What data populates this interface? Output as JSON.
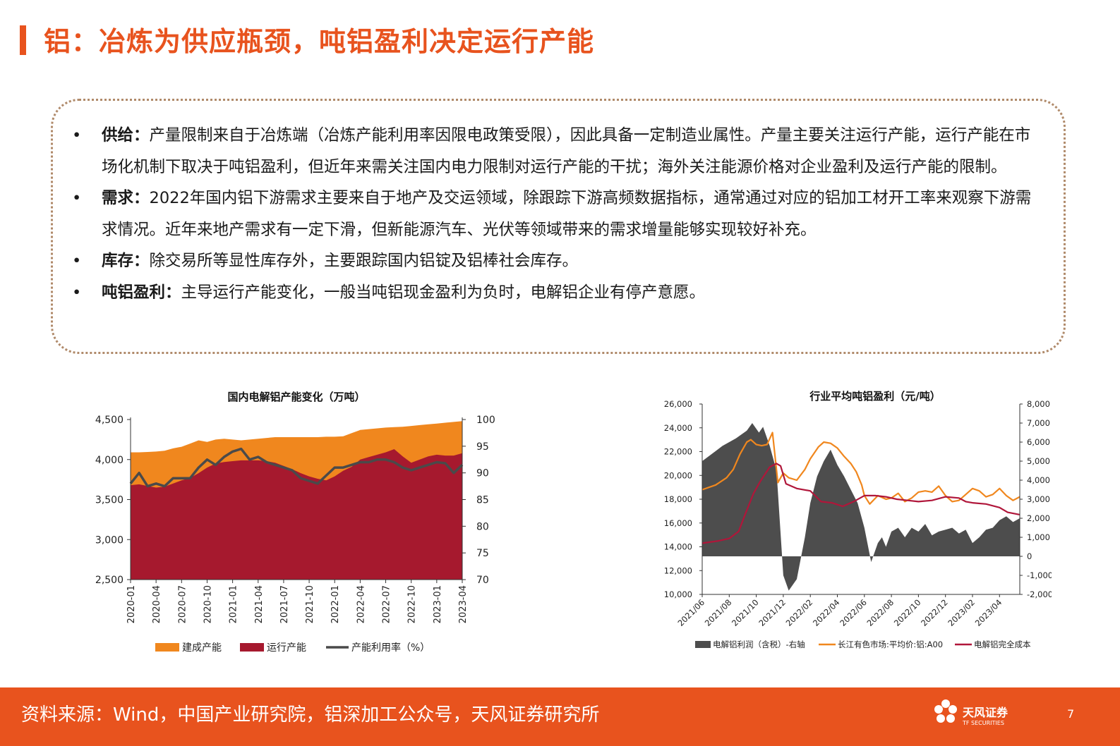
{
  "header": {
    "title": "铝：冶炼为供应瓶颈，吨铝盈利决定运行产能"
  },
  "bullets": [
    {
      "label": "供给：",
      "text": "产量限制来自于冶炼端（冶炼产能利用率因限电政策受限），因此具备一定制造业属性。产量主要关注运行产能，运行产能在市场化机制下取决于吨铝盈利，但近年来需关注国内电力限制对运行产能的干扰；海外关注能源价格对企业盈利及运行产能的限制。"
    },
    {
      "label": "需求：",
      "text": "2022年国内铝下游需求主要来自于地产及交运领域，除跟踪下游高频数据指标，通常通过对应的铝加工材开工率来观察下游需求情况。近年来地产需求有一定下滑，但新能源汽车、光伏等领域带来的需求增量能够实现较好补充。"
    },
    {
      "label": "库存：",
      "text": "除交易所等显性库存外，主要跟踪国内铝锭及铝棒社会库存。"
    },
    {
      "label": "吨铝盈利：",
      "text": "主导运行产能变化，一般当吨铝现金盈利为负时，电解铝企业有停产意愿。"
    }
  ],
  "chart_data": [
    {
      "type": "area",
      "title": "国内电解铝产能变化（万吨）",
      "categories": [
        "2020-01",
        "2020-02",
        "2020-03",
        "2020-04",
        "2020-05",
        "2020-06",
        "2020-07",
        "2020-08",
        "2020-09",
        "2020-10",
        "2020-11",
        "2020-12",
        "2021-01",
        "2021-02",
        "2021-03",
        "2021-04",
        "2021-05",
        "2021-06",
        "2021-07",
        "2021-08",
        "2021-09",
        "2021-10",
        "2021-11",
        "2021-12",
        "2022-01",
        "2022-02",
        "2022-03",
        "2022-04",
        "2022-05",
        "2022-06",
        "2022-07",
        "2022-08",
        "2022-09",
        "2022-10",
        "2022-11",
        "2022-12",
        "2023-01",
        "2023-02",
        "2023-03",
        "2023-04"
      ],
      "tick_labels": [
        "2020-01",
        "2020-04",
        "2020-07",
        "2020-10",
        "2021-01",
        "2021-04",
        "2021-07",
        "2021-10",
        "2022-01",
        "2022-04",
        "2022-07",
        "2022-10",
        "2023-01",
        "2023-04"
      ],
      "left_axis": {
        "ylim": [
          2500,
          4500
        ],
        "ticks": [
          "2,500",
          "3,000",
          "3,500",
          "4,000",
          "4,500"
        ]
      },
      "right_axis": {
        "ylim": [
          70,
          100
        ],
        "ticks": [
          "70",
          "75",
          "80",
          "85",
          "90",
          "95",
          "100"
        ]
      },
      "series": [
        {
          "name": "建成产能",
          "axis": "left",
          "color": "#F0871E",
          "values": [
            4090,
            4090,
            4095,
            4100,
            4110,
            4140,
            4160,
            4200,
            4240,
            4220,
            4250,
            4260,
            4250,
            4240,
            4250,
            4260,
            4270,
            4280,
            4280,
            4280,
            4280,
            4280,
            4280,
            4285,
            4285,
            4290,
            4330,
            4370,
            4380,
            4390,
            4400,
            4405,
            4410,
            4420,
            4430,
            4440,
            4450,
            4460,
            4470,
            4480
          ]
        },
        {
          "name": "运行产能",
          "axis": "left",
          "color": "#A6192E",
          "values": [
            3680,
            3690,
            3670,
            3650,
            3660,
            3700,
            3740,
            3770,
            3830,
            3900,
            3950,
            3970,
            3980,
            3990,
            3990,
            3990,
            3980,
            3960,
            3920,
            3880,
            3830,
            3790,
            3760,
            3740,
            3790,
            3860,
            3910,
            4000,
            4030,
            4060,
            4090,
            4130,
            4040,
            3960,
            4000,
            4040,
            4060,
            4050,
            4050,
            4080
          ]
        },
        {
          "name": "产能利用率（%）",
          "axis": "right",
          "color": "#4A4A4A",
          "values": [
            88.0,
            90.0,
            87.5,
            88.0,
            87.5,
            89.0,
            89.0,
            89.0,
            91.0,
            92.5,
            91.5,
            93.0,
            94.0,
            94.5,
            92.5,
            93.0,
            92.0,
            91.5,
            91.0,
            90.5,
            89.0,
            88.5,
            88.0,
            89.5,
            91.0,
            91.0,
            91.5,
            92.0,
            92.0,
            92.5,
            92.5,
            92.0,
            91.0,
            90.5,
            91.0,
            91.5,
            92.0,
            91.8,
            90.0,
            91.5
          ]
        }
      ],
      "legend_position": "bottom"
    },
    {
      "type": "line",
      "title": "行业平均吨铝盈利（元/吨）",
      "tick_labels": [
        "2021/06",
        "2021/08",
        "2021/10",
        "2021/12",
        "2022/02",
        "2022/04",
        "2022/06",
        "2022/08",
        "2022/10",
        "2022/12",
        "2023/02",
        "2023/04"
      ],
      "left_axis": {
        "ylim": [
          10000,
          26000
        ],
        "ticks": [
          "10,000",
          "12,000",
          "14,000",
          "16,000",
          "18,000",
          "20,000",
          "22,000",
          "24,000",
          "26,000"
        ]
      },
      "right_axis": {
        "ylim": [
          -2000,
          8000
        ],
        "ticks": [
          "-2,000",
          "-1,000",
          "0",
          "1,000",
          "2,000",
          "3,000",
          "4,000",
          "5,000",
          "6,000",
          "7,000",
          "8,000"
        ]
      },
      "series": [
        {
          "name": "电解铝利润（含税）-右轴",
          "axis": "right",
          "type": "area",
          "color": "#4D4D4D",
          "x": [
            0,
            1.5,
            2.5,
            3.3,
            3.7,
            4.2,
            4.5,
            5.0,
            5.5,
            6.0,
            6.4,
            7.0,
            7.6,
            8.0,
            8.5,
            9.0,
            9.5,
            10.0,
            10.5,
            11.0,
            11.5,
            12.0,
            12.5,
            13.0,
            13.3,
            13.6,
            14.0,
            14.5,
            15.0,
            15.5,
            16.0,
            16.5,
            17.0,
            17.5,
            18.0,
            18.5,
            19.0,
            19.5,
            20.0,
            20.5,
            21.0,
            21.5,
            22.0,
            22.5,
            23.0,
            23.5
          ],
          "values": [
            5000,
            5800,
            6200,
            6600,
            7000,
            6500,
            6800,
            5800,
            4500,
            -1000,
            -1800,
            -1200,
            1000,
            2800,
            4200,
            5000,
            5600,
            4800,
            4200,
            3500,
            2800,
            1500,
            -300,
            700,
            1000,
            500,
            1300,
            1500,
            1000,
            1500,
            1300,
            1700,
            1100,
            1300,
            1400,
            1500,
            1200,
            1400,
            700,
            1000,
            1400,
            1500,
            1900,
            2100,
            1800,
            2000
          ]
        },
        {
          "name": "长江有色市场:平均价:铝:A00",
          "axis": "left",
          "type": "line",
          "color": "#F0871E",
          "x": [
            0,
            1.0,
            1.8,
            2.3,
            2.8,
            3.3,
            3.6,
            4.0,
            4.4,
            4.8,
            5.2,
            5.6,
            6.0,
            6.4,
            7.0,
            7.6,
            8.0,
            8.6,
            9.0,
            9.5,
            10.0,
            10.5,
            11.0,
            11.4,
            11.8,
            12.0,
            12.4,
            13.0,
            13.6,
            14.0,
            14.5,
            15.0,
            15.5,
            16.0,
            16.5,
            17.0,
            17.5,
            18.0,
            18.5,
            19.0,
            19.5,
            20.0,
            20.5,
            21.0,
            21.5,
            22.0,
            22.5,
            23.0,
            23.5
          ],
          "values": [
            18800,
            19200,
            19800,
            20500,
            21800,
            22800,
            23000,
            22600,
            22500,
            22600,
            23600,
            19400,
            20200,
            19800,
            19600,
            20500,
            21400,
            22400,
            22800,
            22700,
            22300,
            21600,
            21000,
            20300,
            19200,
            18300,
            17600,
            18300,
            18000,
            18100,
            18500,
            17800,
            18100,
            18600,
            18700,
            18600,
            19100,
            18300,
            17800,
            17900,
            18400,
            18900,
            18700,
            18200,
            18400,
            18900,
            18300,
            17900,
            18200
          ]
        },
        {
          "name": "电解铝完全成本",
          "axis": "left",
          "type": "line",
          "color": "#B0163A",
          "x": [
            0,
            1.2,
            2.0,
            2.7,
            3.2,
            3.8,
            4.3,
            5.0,
            5.5,
            5.8,
            6.2,
            7.0,
            8.0,
            8.8,
            9.6,
            10.4,
            11.2,
            12.0,
            12.8,
            13.6,
            14.4,
            15.2,
            16.0,
            17.0,
            18.0,
            19.0,
            19.5,
            20.0,
            21.0,
            22.0,
            22.6,
            23.5
          ],
          "values": [
            14300,
            14500,
            14700,
            15300,
            16800,
            18500,
            19500,
            20700,
            21000,
            20800,
            19300,
            18900,
            18700,
            17800,
            17700,
            17400,
            17800,
            18300,
            18300,
            18200,
            18000,
            17900,
            17800,
            17900,
            18200,
            18100,
            17800,
            17700,
            17600,
            17300,
            16900,
            16700
          ]
        }
      ],
      "legend_position": "bottom"
    }
  ],
  "footer": {
    "source": "资料来源：Wind，中国产业研究院，铝深加工公众号，天风证券研究所",
    "logo_name": "天风证券",
    "logo_sub": "TF SECURITIES",
    "page_number": "7"
  },
  "colors": {
    "accent": "#E8531E",
    "built": "#F0871E",
    "running": "#A6192E",
    "util": "#4A4A4A",
    "profit": "#4D4D4D",
    "price": "#F0871E",
    "cost": "#B0163A"
  }
}
